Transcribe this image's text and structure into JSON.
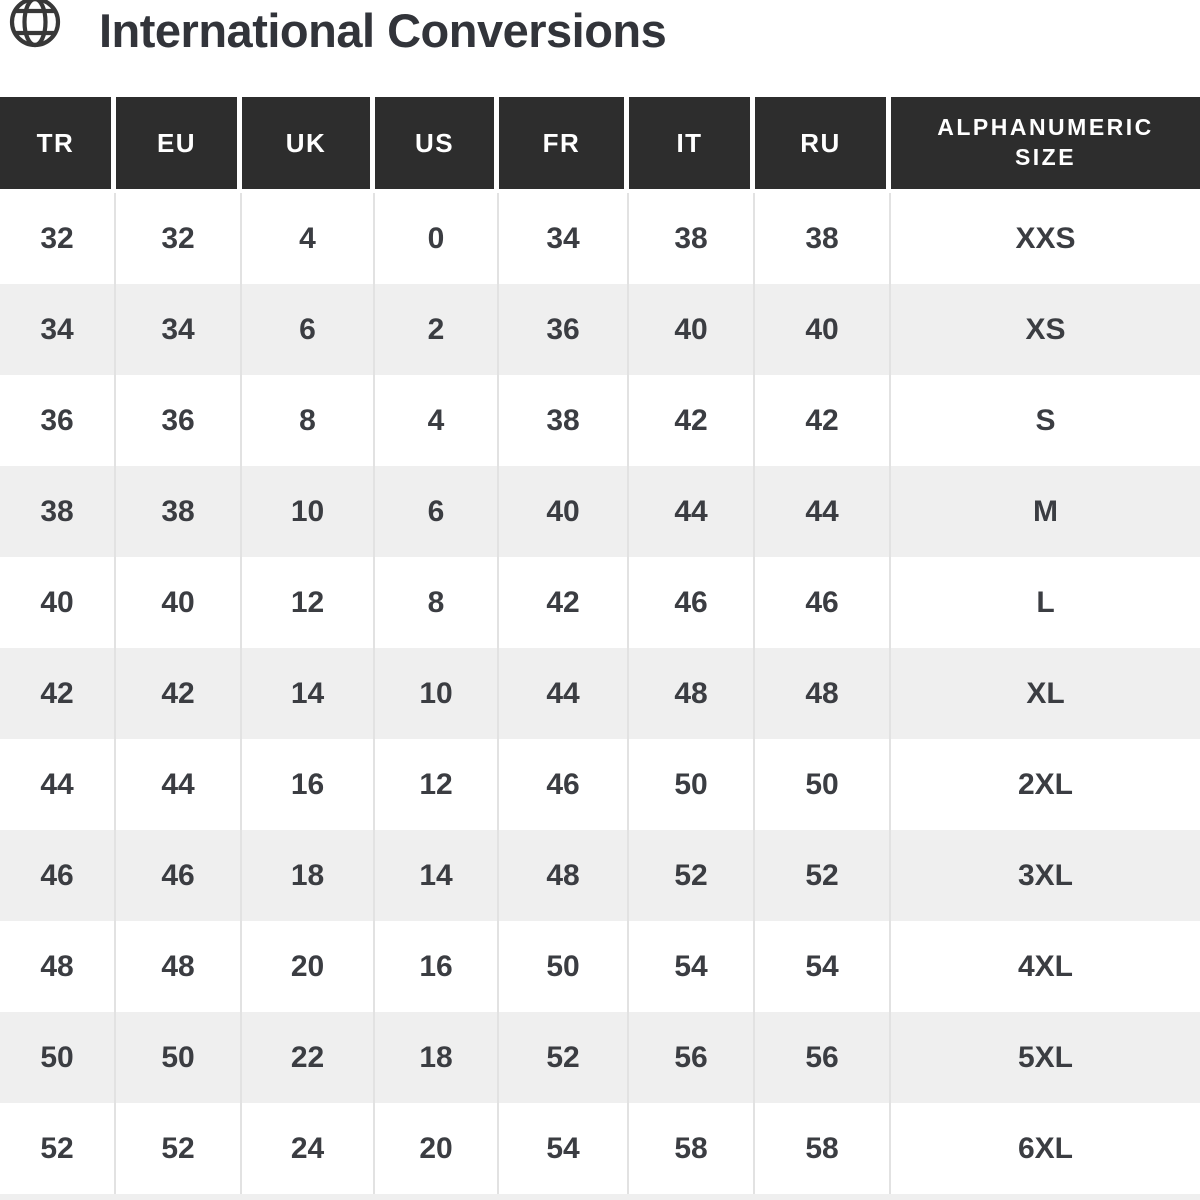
{
  "header": {
    "title": "International Conversions",
    "icon": "globe"
  },
  "table": {
    "columns": [
      "TR",
      "EU",
      "UK",
      "US",
      "FR",
      "IT",
      "RU",
      "ALPHANUMERIC SIZE"
    ],
    "rows": [
      [
        "32",
        "32",
        "4",
        "0",
        "34",
        "38",
        "38",
        "XXS"
      ],
      [
        "34",
        "34",
        "6",
        "2",
        "36",
        "40",
        "40",
        "XS"
      ],
      [
        "36",
        "36",
        "8",
        "4",
        "38",
        "42",
        "42",
        "S"
      ],
      [
        "38",
        "38",
        "10",
        "6",
        "40",
        "44",
        "44",
        "M"
      ],
      [
        "40",
        "40",
        "12",
        "8",
        "42",
        "46",
        "46",
        "L"
      ],
      [
        "42",
        "42",
        "14",
        "10",
        "44",
        "48",
        "48",
        "XL"
      ],
      [
        "44",
        "44",
        "16",
        "12",
        "46",
        "50",
        "50",
        "2XL"
      ],
      [
        "46",
        "46",
        "18",
        "14",
        "48",
        "52",
        "52",
        "3XL"
      ],
      [
        "48",
        "48",
        "20",
        "16",
        "50",
        "54",
        "54",
        "4XL"
      ],
      [
        "50",
        "50",
        "22",
        "18",
        "52",
        "56",
        "56",
        "5XL"
      ],
      [
        "52",
        "52",
        "24",
        "20",
        "54",
        "58",
        "58",
        "6XL"
      ]
    ]
  },
  "colors": {
    "header_bg": "#2d2d2d",
    "stripe": "#efefef",
    "cell_text": "#3b3d42",
    "separator": "#e2e2e2"
  }
}
